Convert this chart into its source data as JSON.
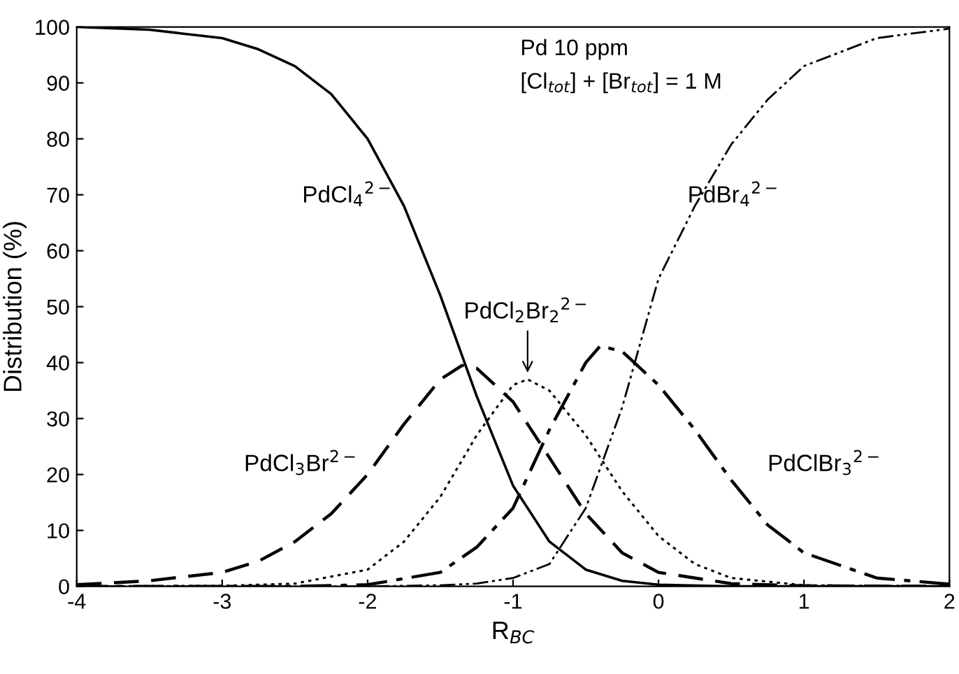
{
  "chart_data": {
    "type": "line",
    "xlabel": "R$_{BC}$",
    "ylabel": "Distribution (%)",
    "xlim": [
      -4,
      2
    ],
    "xticks": [
      -4,
      -3,
      -2,
      -1,
      0,
      1,
      2
    ],
    "ylim": [
      0,
      100
    ],
    "yticks": [
      0,
      10,
      20,
      30,
      40,
      50,
      60,
      70,
      80,
      90,
      100
    ],
    "grid": false,
    "marker": "none",
    "annotations": [
      "Pd 10 ppm",
      "[Cl$_{tot}$] + [Br$_{tot}$] = 1 M"
    ],
    "series": [
      {
        "name": "PdCl$_{4}$$^{2−}$",
        "color": "#000000",
        "line_style": "solid",
        "x": [
          -4,
          -3.5,
          -3,
          -2.75,
          -2.5,
          -2.25,
          -2,
          -1.75,
          -1.5,
          -1.25,
          -1,
          -0.75,
          -0.5,
          -0.25,
          0,
          0.5,
          2
        ],
        "values": [
          100,
          99.5,
          98,
          96,
          93,
          88,
          80,
          68,
          52,
          34,
          18,
          8,
          3,
          1,
          0.3,
          0,
          0
        ]
      },
      {
        "name": "PdCl$_{3}$Br$^{2−}$",
        "color": "#000000",
        "line_style": "dashed",
        "x": [
          -4,
          -3.5,
          -3,
          -2.75,
          -2.5,
          -2.25,
          -2,
          -1.75,
          -1.5,
          -1.35,
          -1.25,
          -1,
          -0.75,
          -0.5,
          -0.25,
          0,
          0.5,
          1,
          2
        ],
        "values": [
          0.3,
          1,
          2.5,
          4.5,
          8,
          13,
          20,
          29,
          37,
          39.5,
          39,
          33,
          23,
          13,
          6,
          2.5,
          0.5,
          0.1,
          0
        ]
      },
      {
        "name": "PdCl$_{2}$Br$_{2}$$^{2−}$",
        "color": "#000000",
        "line_style": "dotted",
        "x": [
          -4,
          -3,
          -2.5,
          -2,
          -1.75,
          -1.5,
          -1.25,
          -1,
          -0.9,
          -0.75,
          -0.5,
          -0.25,
          0,
          0.25,
          0.5,
          1,
          2
        ],
        "values": [
          0,
          0.1,
          0.5,
          3,
          8,
          16,
          27,
          36,
          37,
          35,
          27,
          17,
          9,
          4,
          1.5,
          0.2,
          0
        ]
      },
      {
        "name": "PdClBr$_{3}$$^{2−}$",
        "color": "#000000",
        "line_style": "dashdot",
        "x": [
          -4,
          -2.5,
          -2,
          -1.5,
          -1.25,
          -1,
          -0.75,
          -0.5,
          -0.4,
          -0.25,
          0,
          0.25,
          0.5,
          0.75,
          1,
          1.5,
          2
        ],
        "values": [
          0,
          0,
          0.3,
          2.5,
          7,
          14,
          28,
          40,
          43,
          42,
          36,
          28,
          19,
          11,
          6,
          1.5,
          0.4
        ]
      },
      {
        "name": "PdBr$_{4}$$^{2−}$",
        "color": "#000000",
        "line_style": "dashdotdot",
        "x": [
          -4,
          -2,
          -1.5,
          -1.25,
          -1,
          -0.75,
          -0.5,
          -0.25,
          0,
          0.25,
          0.5,
          0.75,
          1,
          1.5,
          2
        ],
        "values": [
          0,
          0,
          0.2,
          0.5,
          1.5,
          4,
          14,
          32,
          55,
          68,
          79,
          87,
          93,
          98,
          99.7
        ]
      }
    ]
  }
}
